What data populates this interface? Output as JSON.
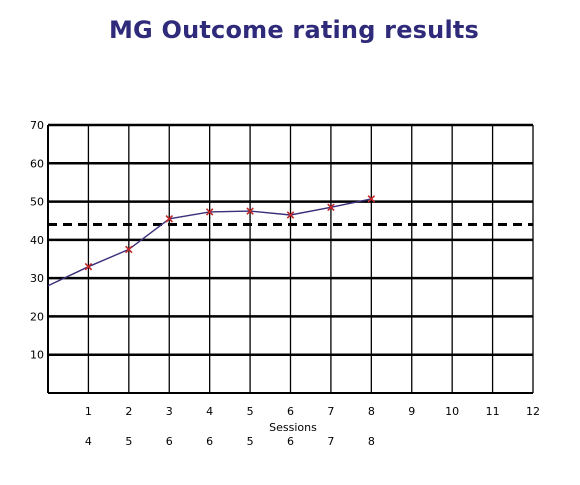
{
  "chart_data": {
    "type": "line",
    "title": "MG Outcome rating results",
    "xlabel": "Sessions",
    "ylabel": "",
    "x_ticks": [
      1,
      2,
      3,
      4,
      5,
      6,
      7,
      8,
      9,
      10,
      11,
      12
    ],
    "x_secondary_labels": [
      4,
      5,
      6,
      6,
      5,
      6,
      7,
      8
    ],
    "y_ticks": [
      10,
      20,
      30,
      40,
      50,
      60,
      70
    ],
    "xlim": [
      0,
      12
    ],
    "ylim": [
      0,
      70
    ],
    "grid": true,
    "series": [
      {
        "x": [
          0,
          1,
          2,
          3,
          4,
          5,
          6,
          7,
          8
        ],
        "y": [
          28,
          33,
          37.5,
          45.5,
          47.3,
          47.5,
          46.5,
          48.5,
          50.7
        ],
        "marker": "x",
        "marker_from_index": 1,
        "line_color": "#3a2f7a",
        "marker_color": "#c0282a"
      }
    ],
    "reference_line": {
      "y": 44,
      "style": "dashed",
      "color": "#000000"
    }
  }
}
